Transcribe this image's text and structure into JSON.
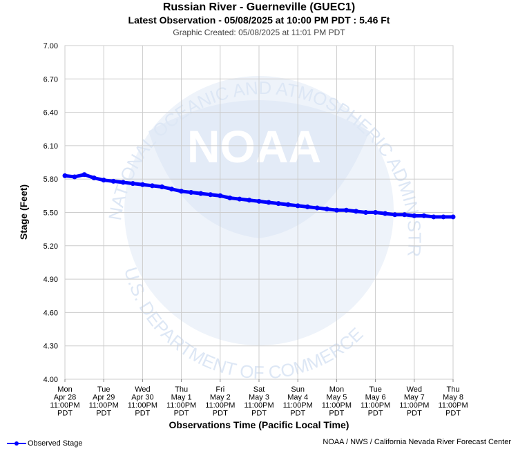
{
  "header": {
    "title": "Russian River - Guerneville (GUEC1)",
    "latest": "Latest Observation - 05/08/2025 at 10:00 PM PDT : 5.46 Ft",
    "created": "Graphic Created: 05/08/2025 at 11:01 PM PDT"
  },
  "watermark": {
    "logo_text": "NOAA",
    "ring_text_top": "NATIONAL OCEANIC AND ATMOSPHERIC ADMINISTRATION",
    "ring_text_bottom": "U.S. DEPARTMENT OF COMMERCE"
  },
  "legend": {
    "label": "Observed Stage"
  },
  "credit": "NOAA / NWS / California Nevada River Forecast Center",
  "colors": {
    "series": "#0000ff",
    "grid": "#cccccc",
    "watermark": "#dde7f5"
  },
  "chart_data": {
    "type": "line",
    "title": "Russian River - Guerneville (GUEC1)",
    "xlabel": "Observations Time (Pacific Local Time)",
    "ylabel": "Stage (Feet)",
    "ylim": [
      4.0,
      7.0
    ],
    "yticks": [
      "4.00",
      "4.30",
      "4.60",
      "4.90",
      "5.20",
      "5.50",
      "5.80",
      "6.10",
      "6.40",
      "6.70",
      "7.00"
    ],
    "xticks": [
      [
        "Mon",
        "Apr 28",
        "11:00PM",
        "PDT"
      ],
      [
        "Tue",
        "Apr 29",
        "11:00PM",
        "PDT"
      ],
      [
        "Wed",
        "Apr 30",
        "11:00PM",
        "PDT"
      ],
      [
        "Thu",
        "May 1",
        "11:00PM",
        "PDT"
      ],
      [
        "Fri",
        "May 2",
        "11:00PM",
        "PDT"
      ],
      [
        "Sat",
        "May 3",
        "11:00PM",
        "PDT"
      ],
      [
        "Sun",
        "May 4",
        "11:00PM",
        "PDT"
      ],
      [
        "Mon",
        "May 5",
        "11:00PM",
        "PDT"
      ],
      [
        "Tue",
        "May 6",
        "11:00PM",
        "PDT"
      ],
      [
        "Wed",
        "May 7",
        "11:00PM",
        "PDT"
      ],
      [
        "Thu",
        "May 8",
        "11:00PM",
        "PDT"
      ]
    ],
    "grid": true,
    "legend_position": "bottom-left",
    "series": [
      {
        "name": "Observed Stage",
        "x": [
          "Apr 28 11:00PM",
          "Apr 29 05:00AM",
          "Apr 29 11:00AM",
          "Apr 29 05:00PM",
          "Apr 29 11:00PM",
          "Apr 30 05:00AM",
          "Apr 30 11:00AM",
          "Apr 30 05:00PM",
          "Apr 30 11:00PM",
          "May 1 05:00AM",
          "May 1 11:00AM",
          "May 1 05:00PM",
          "May 1 11:00PM",
          "May 2 05:00AM",
          "May 2 11:00AM",
          "May 2 05:00PM",
          "May 2 11:00PM",
          "May 3 05:00AM",
          "May 3 11:00AM",
          "May 3 05:00PM",
          "May 3 11:00PM",
          "May 4 05:00AM",
          "May 4 11:00AM",
          "May 4 05:00PM",
          "May 4 11:00PM",
          "May 5 05:00AM",
          "May 5 11:00AM",
          "May 5 05:00PM",
          "May 5 11:00PM",
          "May 6 05:00AM",
          "May 6 11:00AM",
          "May 6 05:00PM",
          "May 6 11:00PM",
          "May 7 05:00AM",
          "May 7 11:00AM",
          "May 7 05:00PM",
          "May 7 11:00PM",
          "May 8 05:00AM",
          "May 8 11:00AM",
          "May 8 05:00PM",
          "May 8 10:00PM"
        ],
        "values": [
          5.83,
          5.82,
          5.84,
          5.81,
          5.79,
          5.78,
          5.77,
          5.76,
          5.75,
          5.74,
          5.73,
          5.71,
          5.69,
          5.68,
          5.67,
          5.66,
          5.65,
          5.63,
          5.62,
          5.61,
          5.6,
          5.59,
          5.58,
          5.57,
          5.56,
          5.55,
          5.54,
          5.53,
          5.52,
          5.52,
          5.51,
          5.5,
          5.5,
          5.49,
          5.48,
          5.48,
          5.47,
          5.47,
          5.46,
          5.46,
          5.46
        ]
      }
    ]
  }
}
